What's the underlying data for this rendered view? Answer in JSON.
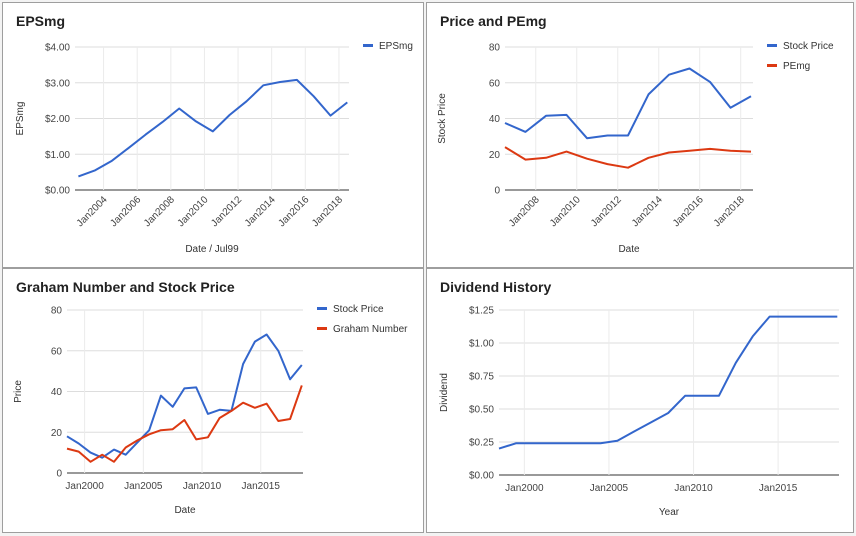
{
  "panels": {
    "eps": {
      "title": "EPSmg",
      "chart_data": {
        "type": "line",
        "title": "EPSmg",
        "xlabel": "Date / Jul99",
        "ylabel": "EPSmg",
        "x_tick_labels": [
          "Jan2004",
          "Jan2006",
          "Jan2008",
          "Jan2010",
          "Jan2012",
          "Jan2014",
          "Jan2016",
          "Jan2018"
        ],
        "x_ticks": [
          2004,
          2006,
          2008,
          2010,
          2012,
          2014,
          2016,
          2018
        ],
        "xlim": [
          2002.3,
          2018.6
        ],
        "ylim": [
          0,
          4
        ],
        "y_ticks": [
          0,
          1,
          2,
          3,
          4
        ],
        "y_tick_labels": [
          "$0.00",
          "$1.00",
          "$2.00",
          "$3.00",
          "$4.00"
        ],
        "grid": true,
        "legend": "top-right",
        "series": [
          {
            "name": "EPSmg",
            "color": "#3366cc",
            "x": [
              2002.5,
              2003.5,
              2004.5,
              2005.5,
              2006.5,
              2007.5,
              2008.5,
              2009.5,
              2010.5,
              2011.5,
              2012.5,
              2013.5,
              2014.5,
              2015.5,
              2016.5,
              2017.5,
              2018.5
            ],
            "y": [
              0.38,
              0.55,
              0.82,
              1.18,
              1.55,
              1.9,
              2.28,
              1.92,
              1.64,
              2.1,
              2.48,
              2.93,
              3.02,
              3.08,
              2.62,
              2.08,
              2.45
            ]
          }
        ]
      }
    },
    "pe": {
      "title": "Price and PEmg",
      "chart_data": {
        "type": "line",
        "title": "Price and PEmg",
        "xlabel": "Date",
        "ylabel": "Stock Price",
        "x_tick_labels": [
          "Jan2008",
          "Jan2010",
          "Jan2012",
          "Jan2014",
          "Jan2016",
          "Jan2018"
        ],
        "x_ticks": [
          2008,
          2010,
          2012,
          2014,
          2016,
          2018
        ],
        "xlim": [
          2006.5,
          2018.6
        ],
        "ylim": [
          0,
          80
        ],
        "y_ticks": [
          0,
          20,
          40,
          60,
          80
        ],
        "y_tick_labels": [
          "0",
          "20",
          "40",
          "60",
          "80"
        ],
        "grid": true,
        "legend": "top-right",
        "series": [
          {
            "name": "Stock Price",
            "color": "#3366cc",
            "x": [
              2006.5,
              2007.5,
              2008.5,
              2009.5,
              2010.5,
              2011.5,
              2012.5,
              2013.5,
              2014.5,
              2015.5,
              2016.5,
              2017.5,
              2018.5
            ],
            "y": [
              37.5,
              32.5,
              41.5,
              42,
              29,
              30.5,
              30.5,
              53.5,
              64.5,
              68,
              60.5,
              46,
              52.5
            ]
          },
          {
            "name": "PEmg",
            "color": "#dc3912",
            "x": [
              2006.5,
              2007.5,
              2008.5,
              2009.5,
              2010.5,
              2011.5,
              2012.5,
              2013.5,
              2014.5,
              2015.5,
              2016.5,
              2017.5,
              2018.5
            ],
            "y": [
              24,
              17,
              18,
              21.5,
              17.5,
              14.5,
              12.5,
              18,
              21,
              22,
              23,
              22,
              21.5
            ]
          }
        ]
      }
    },
    "graham": {
      "title": "Graham Number and Stock Price",
      "chart_data": {
        "type": "line",
        "title": "Graham Number and Stock Price",
        "xlabel": "Date",
        "ylabel": "Price",
        "x_tick_labels": [
          "Jan2000",
          "Jan2005",
          "Jan2010",
          "Jan2015"
        ],
        "x_ticks": [
          2000,
          2005,
          2010,
          2015
        ],
        "xlim": [
          1998.5,
          2018.6
        ],
        "ylim": [
          0,
          80
        ],
        "y_ticks": [
          0,
          20,
          40,
          60,
          80
        ],
        "y_tick_labels": [
          "0",
          "20",
          "40",
          "60",
          "80"
        ],
        "grid": true,
        "legend": "top-right",
        "series": [
          {
            "name": "Stock Price",
            "color": "#3366cc",
            "x": [
              1998.5,
              1999.5,
              2000.5,
              2001.5,
              2002.5,
              2003.5,
              2004.5,
              2005.5,
              2006.5,
              2007.5,
              2008.5,
              2009.5,
              2010.5,
              2011.5,
              2012.5,
              2013.5,
              2014.5,
              2015.5,
              2016.5,
              2017.5,
              2018.5
            ],
            "y": [
              18,
              14.5,
              10,
              7.5,
              11.5,
              9,
              15,
              21,
              38,
              32.5,
              41.5,
              42,
              29,
              31,
              30.5,
              53.5,
              64.5,
              68,
              60,
              46,
              53
            ]
          },
          {
            "name": "Graham Number",
            "color": "#dc3912",
            "x": [
              1998.5,
              1999.5,
              2000.5,
              2001.5,
              2002.5,
              2003.5,
              2004.5,
              2005.5,
              2006.5,
              2007.5,
              2008.5,
              2009.5,
              2010.5,
              2011.5,
              2012.5,
              2013.5,
              2014.5,
              2015.5,
              2016.5,
              2017.5,
              2018.5
            ],
            "y": [
              12,
              10.5,
              5.5,
              9,
              5.5,
              12.5,
              16,
              19,
              21,
              21.5,
              26,
              16.5,
              17.5,
              27,
              30.5,
              34.5,
              32,
              34,
              25.5,
              26.5,
              43
            ]
          }
        ]
      }
    },
    "dividend": {
      "title": "Dividend History",
      "chart_data": {
        "type": "line",
        "title": "Dividend History",
        "xlabel": "Year",
        "ylabel": "Dividend",
        "x_tick_labels": [
          "Jan2000",
          "Jan2005",
          "Jan2010",
          "Jan2015"
        ],
        "x_ticks": [
          2000,
          2005,
          2010,
          2015
        ],
        "xlim": [
          1998.5,
          2018.6
        ],
        "ylim": [
          0,
          1.25
        ],
        "y_ticks": [
          0,
          0.25,
          0.5,
          0.75,
          1,
          1.25
        ],
        "y_tick_labels": [
          "$0.00",
          "$0.25",
          "$0.50",
          "$0.75",
          "$1.00",
          "$1.25"
        ],
        "grid": true,
        "legend": "none",
        "series": [
          {
            "name": "",
            "color": "#3366cc",
            "x": [
              1998.5,
              1999.5,
              2000.5,
              2001.5,
              2002.5,
              2003.5,
              2004.5,
              2005.5,
              2006.5,
              2007.5,
              2008.5,
              2009.5,
              2010.5,
              2011.5,
              2012.5,
              2013.5,
              2014.5,
              2015.5,
              2016.5,
              2017.5,
              2018.5
            ],
            "y": [
              0.2,
              0.24,
              0.24,
              0.24,
              0.24,
              0.24,
              0.24,
              0.26,
              0.33,
              0.4,
              0.47,
              0.6,
              0.6,
              0.6,
              0.85,
              1.05,
              1.2,
              1.2,
              1.2,
              1.2,
              1.2
            ]
          }
        ]
      }
    }
  }
}
